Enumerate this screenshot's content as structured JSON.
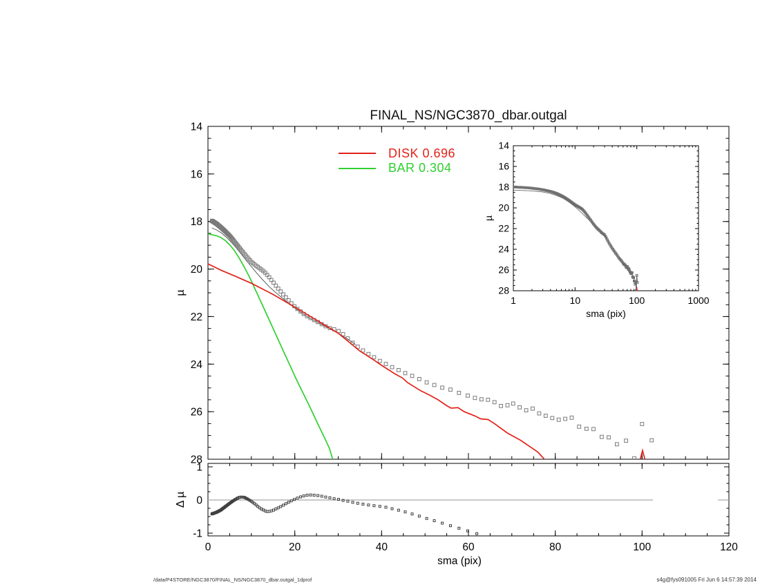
{
  "title": "FINAL_NS/NGC3870_dbar.outgal",
  "legend": {
    "disk": {
      "text": "DISK  0.696",
      "color": "#e32119"
    },
    "bar": {
      "text": "BAR  0.304",
      "color": "#2fd02f"
    }
  },
  "footer": {
    "left": "/data/P4STORE/NGC3870/FINAL_NS/NGC3870_dbar.outgal_1dprof",
    "right": "s4g@fys091005  Fri Jun  6 14:57:39 2014"
  },
  "colors": {
    "frame": "#000000",
    "observed": "#7a7a7a",
    "model": "#4a4a4a",
    "disk": "#e32119",
    "bar": "#2fd02f",
    "residual_marker": "#3f3f3f",
    "zero_line": "#a9a9a9"
  },
  "chart_data": {
    "type": "line",
    "title": "FINAL_NS/NGC3870_dbar.outgal",
    "panels": {
      "main": {
        "xlabel": "",
        "ylabel": "µ",
        "xlim": [
          0,
          120
        ],
        "ylim": [
          28,
          14
        ],
        "xticks": [
          0,
          20,
          40,
          60,
          80,
          100,
          120
        ],
        "yticks": [
          14,
          16,
          18,
          20,
          22,
          24,
          26,
          28
        ],
        "x_minor_step": 5,
        "y_minor_step": 0.5,
        "x_labels_shown": false
      },
      "inset": {
        "xlabel": "sma (pix)",
        "ylabel": "µ",
        "xscale": "log",
        "xlim": [
          1,
          1000
        ],
        "ylim": [
          28,
          14
        ],
        "xticks": [
          1,
          10,
          100,
          1000
        ],
        "yticks": [
          14,
          16,
          18,
          20,
          22,
          24,
          26,
          28
        ],
        "y_minor_step": 0.5
      },
      "residual": {
        "xlabel": "sma (pix)",
        "ylabel": "Δ µ",
        "xlim": [
          0,
          120
        ],
        "ylim": [
          -1.08,
          1.08
        ],
        "xticks": [
          0,
          20,
          40,
          60,
          80,
          100,
          120
        ],
        "yticks": [
          -1,
          0,
          1
        ],
        "x_minor_step": 5,
        "y_minor_step": 0.25,
        "zero_line_segments": [
          [
            0,
            102.5
          ],
          [
            117.5,
            120
          ]
        ]
      }
    },
    "series": {
      "observed": {
        "name": "observed surface-brightness profile",
        "marker": "open-square",
        "anchors": [
          [
            0.9,
            17.97
          ],
          [
            2,
            18.1
          ],
          [
            3,
            18.25
          ],
          [
            4,
            18.42
          ],
          [
            5,
            18.6
          ],
          [
            6,
            18.82
          ],
          [
            7,
            19.05
          ],
          [
            8,
            19.28
          ],
          [
            9,
            19.5
          ],
          [
            10,
            19.7
          ],
          [
            11,
            19.85
          ],
          [
            12,
            19.98
          ],
          [
            13,
            20.12
          ],
          [
            14,
            20.32
          ],
          [
            15,
            20.55
          ],
          [
            16,
            20.78
          ],
          [
            17,
            21.0
          ],
          [
            18,
            21.2
          ],
          [
            19,
            21.4
          ],
          [
            20,
            21.58
          ],
          [
            21,
            21.74
          ],
          [
            22,
            21.88
          ],
          [
            23,
            22.0
          ],
          [
            24,
            22.1
          ],
          [
            25,
            22.2
          ],
          [
            26,
            22.3
          ],
          [
            27,
            22.4
          ],
          [
            28,
            22.48
          ],
          [
            29,
            22.53
          ],
          [
            30,
            22.6
          ],
          [
            31,
            22.72
          ],
          [
            32,
            22.88
          ],
          [
            33,
            23.05
          ],
          [
            34,
            23.2
          ],
          [
            35,
            23.33
          ],
          [
            36.5,
            23.53
          ],
          [
            38,
            23.68
          ],
          [
            39.7,
            23.88
          ],
          [
            41.3,
            24.02
          ],
          [
            42.9,
            24.17
          ],
          [
            44.5,
            24.3
          ],
          [
            46.4,
            24.46
          ],
          [
            48,
            24.55
          ],
          [
            49.3,
            24.7
          ],
          [
            50.9,
            24.8
          ],
          [
            52.5,
            24.9
          ],
          [
            53.7,
            24.98
          ],
          [
            55.3,
            25.03
          ],
          [
            57.2,
            25.17
          ],
          [
            58.8,
            25.27
          ],
          [
            60,
            25.33
          ]
        ],
        "dense_sampling": {
          "type": "geometric",
          "start": 0.9,
          "ratio": 1.035,
          "end": 60
        },
        "outer_points": [
          [
            61.5,
            25.42
          ],
          [
            63,
            25.48
          ],
          [
            64.5,
            25.5
          ],
          [
            66,
            25.6
          ],
          [
            67.5,
            25.76
          ],
          [
            69,
            25.73
          ],
          [
            70.3,
            25.66
          ],
          [
            71.8,
            25.82
          ],
          [
            73.3,
            25.94
          ],
          [
            74.8,
            25.87
          ],
          [
            76.3,
            26.07
          ],
          [
            77.8,
            26.17
          ],
          [
            79.3,
            26.27
          ],
          [
            80.8,
            26.34
          ],
          [
            82.3,
            26.3
          ],
          [
            83.8,
            26.25
          ],
          [
            85.5,
            26.63
          ],
          [
            87.2,
            26.72
          ],
          [
            88.8,
            26.73
          ],
          [
            90.7,
            27.06
          ],
          [
            92.3,
            27.08
          ],
          [
            94.2,
            27.37
          ],
          [
            96.3,
            27.22
          ],
          [
            98.2,
            27.96
          ],
          [
            100,
            26.52
          ],
          [
            102.2,
            27.2
          ]
        ]
      },
      "model_total": {
        "name": "total model (disk+bar)",
        "points": [
          [
            0.9,
            18.27
          ],
          [
            2,
            18.36
          ],
          [
            3,
            18.47
          ],
          [
            4,
            18.62
          ],
          [
            5,
            18.8
          ],
          [
            6,
            19.0
          ],
          [
            7,
            19.22
          ],
          [
            8,
            19.45
          ],
          [
            9,
            19.68
          ],
          [
            10,
            19.9
          ],
          [
            11,
            20.12
          ],
          [
            12,
            20.33
          ],
          [
            13,
            20.53
          ],
          [
            14,
            20.72
          ],
          [
            15,
            20.89
          ],
          [
            16,
            21.05
          ],
          [
            17,
            21.2
          ],
          [
            18,
            21.35
          ],
          [
            19,
            21.5
          ],
          [
            20,
            21.64
          ],
          [
            22,
            21.9
          ],
          [
            24,
            22.12
          ],
          [
            26,
            22.32
          ],
          [
            28,
            22.5
          ],
          [
            30,
            22.7
          ],
          [
            32,
            22.92
          ],
          [
            34,
            23.18
          ]
        ]
      },
      "disk": {
        "name": "DISK",
        "fraction": 0.696,
        "points": [
          [
            0,
            19.78
          ],
          [
            3,
            20.05
          ],
          [
            6,
            20.28
          ],
          [
            10,
            20.6
          ],
          [
            15,
            21.07
          ],
          [
            20,
            21.6
          ],
          [
            25,
            22.15
          ],
          [
            30,
            22.7
          ],
          [
            33,
            23.15
          ],
          [
            35,
            23.45
          ],
          [
            38,
            23.8
          ],
          [
            40,
            24.05
          ],
          [
            43,
            24.4
          ],
          [
            44.8,
            24.58
          ],
          [
            46,
            24.78
          ],
          [
            49,
            25.12
          ],
          [
            51,
            25.3
          ],
          [
            53,
            25.5
          ],
          [
            55,
            25.75
          ],
          [
            56,
            25.85
          ],
          [
            57.6,
            25.83
          ],
          [
            59,
            26.0
          ],
          [
            61.5,
            26.18
          ],
          [
            62.8,
            26.3
          ],
          [
            64.5,
            26.33
          ],
          [
            66,
            26.5
          ],
          [
            69,
            26.9
          ],
          [
            72,
            27.2
          ],
          [
            74,
            27.45
          ],
          [
            76,
            27.7
          ],
          [
            78,
            28.1
          ]
        ],
        "spike": [
          [
            99.4,
            28.12
          ],
          [
            100.1,
            27.63
          ],
          [
            100.8,
            28.12
          ]
        ]
      },
      "bar": {
        "name": "BAR",
        "fraction": 0.304,
        "points": [
          [
            0,
            18.52
          ],
          [
            2,
            18.6
          ],
          [
            3,
            18.68
          ],
          [
            4,
            18.8
          ],
          [
            5,
            18.98
          ],
          [
            6,
            19.2
          ],
          [
            7,
            19.48
          ],
          [
            8,
            19.8
          ],
          [
            9,
            20.14
          ],
          [
            10,
            20.5
          ],
          [
            11,
            20.9
          ],
          [
            12,
            21.3
          ],
          [
            13,
            21.7
          ],
          [
            14,
            22.1
          ],
          [
            15,
            22.5
          ],
          [
            16,
            22.9
          ],
          [
            17,
            23.3
          ],
          [
            18,
            23.7
          ],
          [
            19,
            24.1
          ],
          [
            20,
            24.5
          ],
          [
            21,
            24.88
          ],
          [
            22,
            25.25
          ],
          [
            23,
            25.62
          ],
          [
            24,
            26.0
          ],
          [
            25,
            26.4
          ],
          [
            26,
            26.78
          ],
          [
            27,
            27.15
          ],
          [
            28,
            27.55
          ],
          [
            28.9,
            28.1
          ]
        ]
      },
      "residual": {
        "name": "Δµ (data - model)",
        "marker": "open-square",
        "anchors": [
          [
            0.9,
            -0.42
          ],
          [
            2,
            -0.37
          ],
          [
            3,
            -0.3
          ],
          [
            4,
            -0.2
          ],
          [
            5,
            -0.1
          ],
          [
            6,
            -0.01
          ],
          [
            7,
            0.07
          ],
          [
            7.6,
            0.09
          ],
          [
            8.4,
            0.08
          ],
          [
            9,
            0.04
          ],
          [
            10,
            -0.04
          ],
          [
            11,
            -0.14
          ],
          [
            12,
            -0.25
          ],
          [
            13,
            -0.32
          ],
          [
            13.6,
            -0.35
          ],
          [
            14.4,
            -0.34
          ],
          [
            15,
            -0.31
          ],
          [
            16,
            -0.25
          ],
          [
            17,
            -0.18
          ],
          [
            18,
            -0.11
          ],
          [
            19,
            -0.04
          ],
          [
            20,
            0.02
          ],
          [
            21,
            0.08
          ],
          [
            22,
            0.12
          ],
          [
            23,
            0.15
          ],
          [
            24,
            0.15
          ],
          [
            25,
            0.14
          ],
          [
            26,
            0.12
          ],
          [
            27,
            0.09
          ],
          [
            28,
            0.07
          ],
          [
            29,
            0.04
          ],
          [
            30,
            0.02
          ],
          [
            31,
            -0.01
          ],
          [
            32,
            -0.03
          ],
          [
            33,
            -0.06
          ],
          [
            34,
            -0.09
          ],
          [
            35,
            -0.11
          ],
          [
            36,
            -0.13
          ],
          [
            37,
            -0.15
          ],
          [
            38,
            -0.17
          ],
          [
            39,
            -0.18
          ],
          [
            40,
            -0.2
          ],
          [
            41,
            -0.22
          ],
          [
            42,
            -0.25
          ],
          [
            43,
            -0.28
          ],
          [
            44,
            -0.31
          ],
          [
            45,
            -0.34
          ],
          [
            46,
            -0.38
          ],
          [
            47,
            -0.42
          ],
          [
            48,
            -0.46
          ],
          [
            49,
            -0.5
          ],
          [
            50,
            -0.54
          ],
          [
            51,
            -0.58
          ],
          [
            52,
            -0.62
          ],
          [
            53,
            -0.66
          ],
          [
            54,
            -0.7
          ],
          [
            55,
            -0.74
          ],
          [
            56,
            -0.78
          ],
          [
            57,
            -0.82
          ],
          [
            58,
            -0.86
          ],
          [
            59,
            -0.9
          ],
          [
            60,
            -0.94
          ],
          [
            61,
            -0.98
          ],
          [
            62,
            -1.02
          ],
          [
            63.2,
            -1.07
          ]
        ],
        "dense_sampling": {
          "type": "geometric",
          "start": 0.9,
          "ratio": 1.035,
          "end": 63.2
        }
      }
    }
  }
}
